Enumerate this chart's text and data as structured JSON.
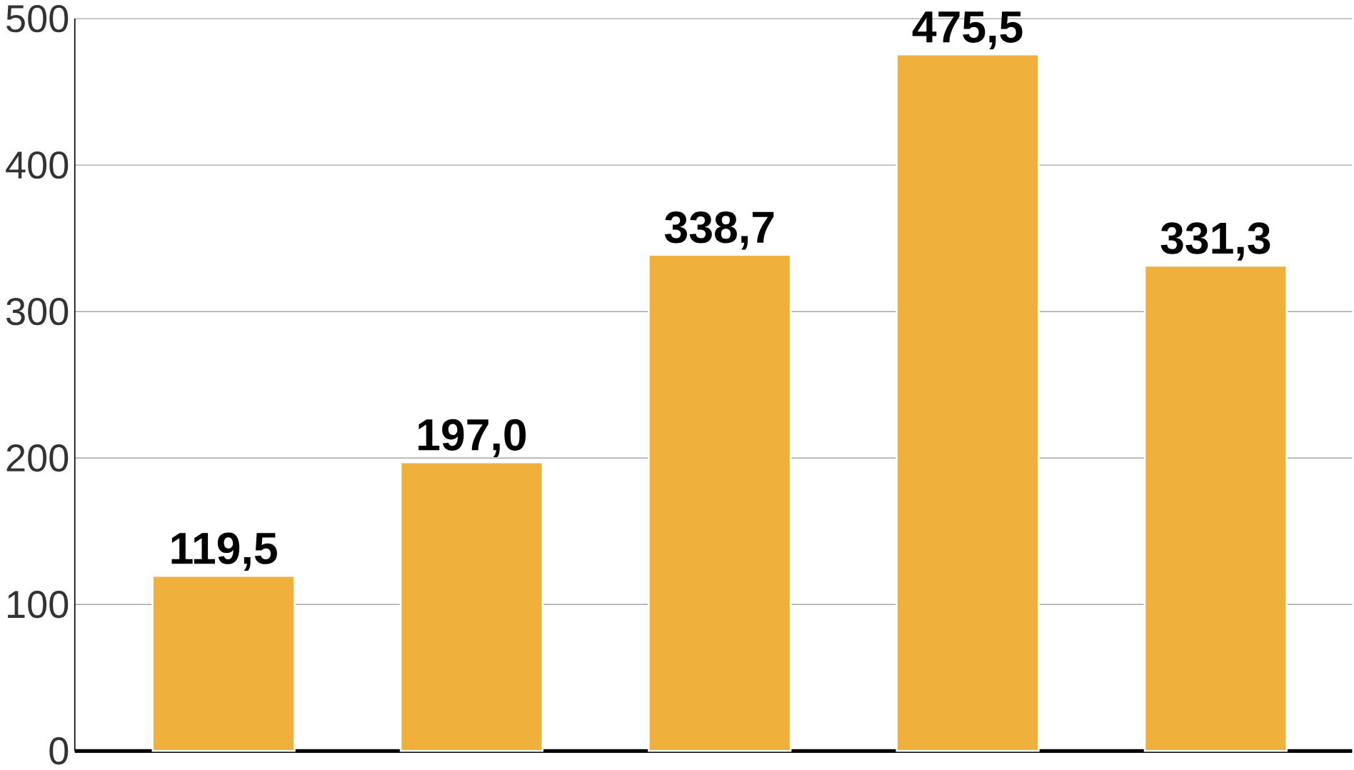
{
  "chart_data": {
    "type": "bar",
    "categories": [
      null,
      null,
      null,
      null,
      null
    ],
    "values": [
      119.5,
      197.0,
      338.7,
      475.5,
      331.3
    ],
    "value_labels": [
      "119,5",
      "197,0",
      "338,7",
      "475,5",
      "331,3"
    ],
    "color": "#f0b03c",
    "ylim": [
      0,
      500
    ],
    "yticks": [
      0,
      100,
      200,
      300,
      400,
      500
    ],
    "grid": "y"
  }
}
